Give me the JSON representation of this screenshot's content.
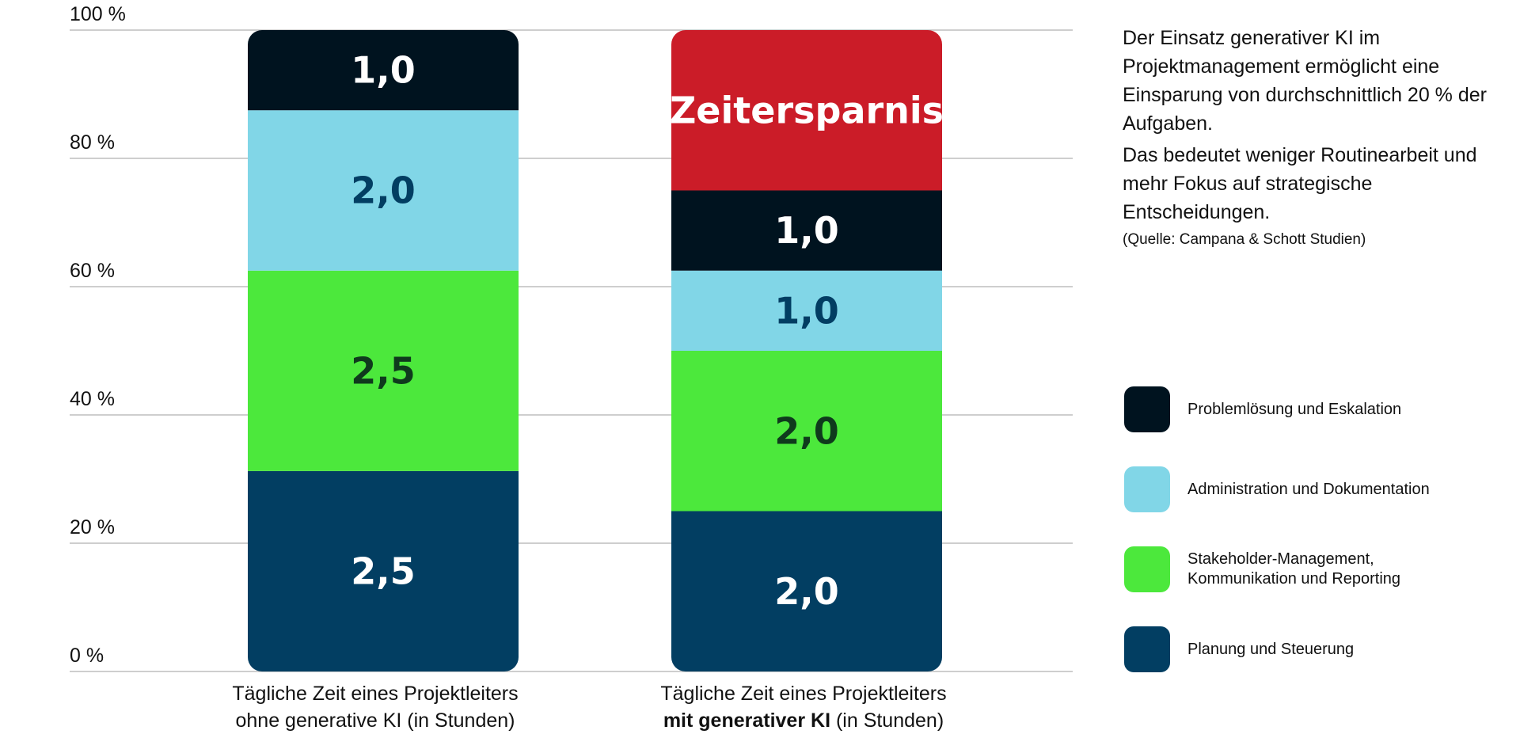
{
  "chart_data": {
    "type": "bar",
    "stacked": true,
    "orientation": "vertical",
    "y_ticks": [
      "0 %",
      "20 %",
      "40 %",
      "60 %",
      "80 %",
      "100 %"
    ],
    "ylim": [
      0,
      100
    ],
    "grid": true,
    "legend_position": "right",
    "categories": [
      {
        "line1": "Tägliche Zeit eines Projektleiters",
        "line2": "ohne generative KI (in Stunden)"
      },
      {
        "line1": "Tägliche Zeit eines Projektleiters",
        "line2_bold": "mit generativer KI",
        "line2_rest": " (in Stunden)"
      }
    ],
    "series": [
      {
        "name": "Planung und Steuerung",
        "color": "#023e62",
        "text_color": "#ffffff",
        "values": [
          2.5,
          2.0
        ],
        "labels": [
          "2,5",
          "2,0"
        ]
      },
      {
        "name": "Stakeholder-Management,\nKommunikation und Reporting",
        "color": "#4ce83c",
        "text_color": "#0f3a1d",
        "values": [
          2.5,
          2.0
        ],
        "labels": [
          "2,5",
          "2,0"
        ]
      },
      {
        "name": "Administration und Dokumentation",
        "color": "#81d6e7",
        "text_color": "#023e62",
        "values": [
          2.0,
          1.0
        ],
        "labels": [
          "2,0",
          "1,0"
        ]
      },
      {
        "name": "Problemlösung und Eskalation",
        "color": "#00131f",
        "text_color": "#ffffff",
        "values": [
          1.0,
          1.0
        ],
        "labels": [
          "1,0",
          "1,0"
        ]
      }
    ],
    "savings": {
      "label": "Zeitersparnis",
      "color": "#cb1c28",
      "text_color": "#ffffff",
      "values": [
        0,
        2.0
      ]
    },
    "total_hours": 8
  },
  "info": {
    "paragraph1": "Der Einsatz generativer KI im Projektmanagement ermöglicht eine Einsparung von durchschnittlich 20 % der Aufgaben.",
    "paragraph2": "Das bedeutet weniger Routinearbeit und mehr Fokus auf strategische Entscheidungen.",
    "source": "(Quelle: Campana & Schott Studien)"
  },
  "legend_order": [
    3,
    2,
    1,
    0
  ]
}
